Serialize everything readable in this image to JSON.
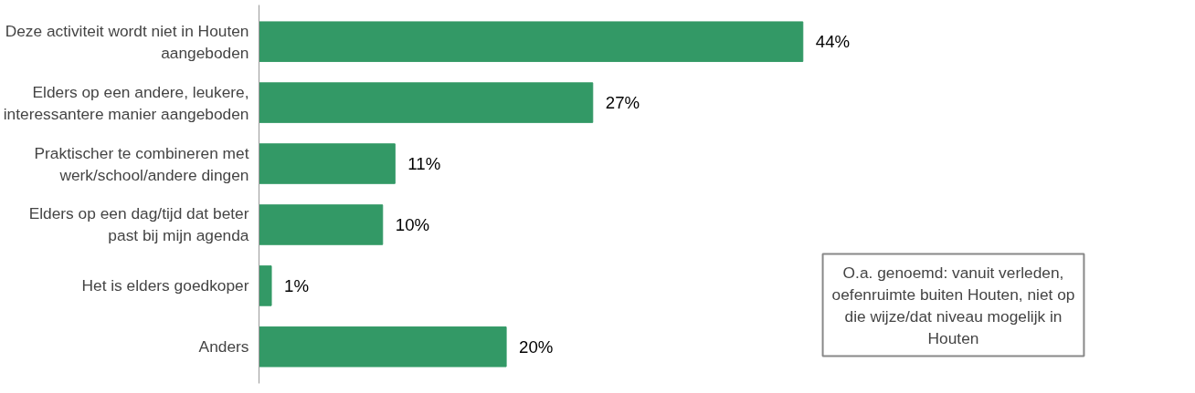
{
  "chart_data": {
    "type": "bar",
    "orientation": "horizontal",
    "data_labels": true,
    "grid": false,
    "categories": [
      "Deze activiteit wordt niet in Houten aangeboden",
      "Elders op een andere, leukere, interessantere manier aangeboden",
      "Praktischer te combineren met werk/school/andere dingen",
      "Elders op een dag/tijd dat beter past bij mijn agenda",
      "Het is elders goedkoper",
      "Anders"
    ],
    "values": [
      44,
      27,
      11,
      10,
      1,
      20
    ],
    "value_labels": [
      "44%",
      "27%",
      "11%",
      "10%",
      "1%",
      "20%"
    ],
    "color": "#339966",
    "annotations": [
      "O.a. genoemd: vanuit verleden, oefenruimte buiten Houten, niet op die wijze/dat niveau mogelijk in Houten"
    ]
  }
}
